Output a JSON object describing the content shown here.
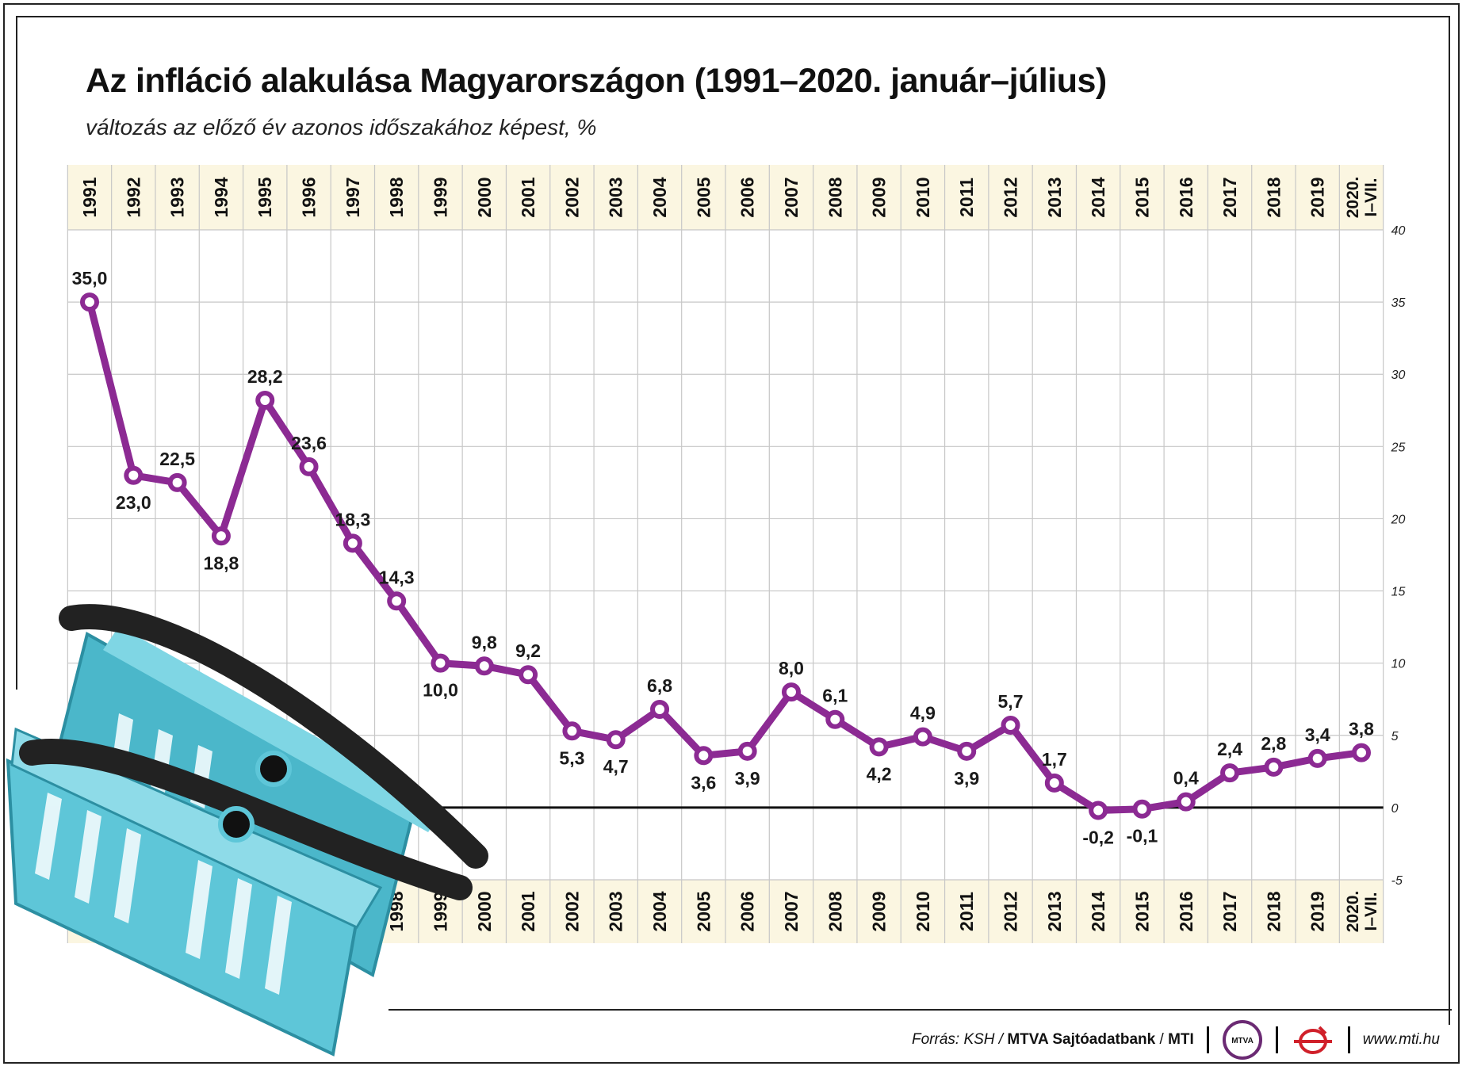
{
  "title": "Az infláció alakulása Magyarországon (1991–2020. január–július)",
  "subtitle": "változás az előző év azonos időszakához képest, %",
  "footer": {
    "source_label": "Forrás: KSH /",
    "agency": "MTVA Sajtóadatbank",
    "agency_sep": "/",
    "mti": "MTI",
    "mtva_logo_text": "MTVA",
    "website": "www.mti.hu"
  },
  "colors": {
    "line": "#8c2a93",
    "band": "#fbf6e1",
    "grid": "#c7c7c7",
    "zero_line": "#111111",
    "basket": "#5ec6d8",
    "handle": "#222222"
  },
  "chart_data": {
    "type": "line",
    "categories": [
      "1991",
      "1992",
      "1993",
      "1994",
      "1995",
      "1996",
      "1997",
      "1998",
      "1999",
      "2000",
      "2001",
      "2002",
      "2003",
      "2004",
      "2005",
      "2006",
      "2007",
      "2008",
      "2009",
      "2010",
      "2011",
      "2012",
      "2013",
      "2014",
      "2015",
      "2016",
      "2017",
      "2018",
      "2019",
      "2020. I–VII."
    ],
    "series": [
      {
        "name": "Infláció",
        "values": [
          35.0,
          23.0,
          22.5,
          18.8,
          28.2,
          23.6,
          18.3,
          14.3,
          10.0,
          9.8,
          9.2,
          5.3,
          4.7,
          6.8,
          3.6,
          3.9,
          8.0,
          6.1,
          4.2,
          4.9,
          3.9,
          5.7,
          1.7,
          -0.2,
          -0.1,
          0.4,
          2.4,
          2.8,
          3.4,
          3.8
        ],
        "labels": [
          "35,0",
          "23,0",
          "22,5",
          "18,8",
          "28,2",
          "23,6",
          "18,3",
          "14,3",
          "10,0",
          "9,8",
          "9,2",
          "5,3",
          "4,7",
          "6,8",
          "3,6",
          "3,9",
          "8,0",
          "6,1",
          "4,2",
          "4,9",
          "3,9",
          "5,7",
          "1,7",
          "-0,2",
          "-0,1",
          "0,4",
          "2,4",
          "2,8",
          "3,4",
          "3,8"
        ],
        "label_side": [
          "above",
          "below",
          "above",
          "below",
          "above",
          "above",
          "above",
          "above",
          "below",
          "above",
          "above",
          "below",
          "below",
          "above",
          "below",
          "below",
          "above",
          "above",
          "below",
          "above",
          "below",
          "above",
          "above",
          "below",
          "below",
          "above",
          "above",
          "above",
          "above",
          "above"
        ]
      }
    ],
    "yticks": [
      "40",
      "35",
      "30",
      "25",
      "20",
      "15",
      "10",
      "5",
      "0",
      "-5"
    ],
    "ylim": [
      -5,
      40
    ],
    "grid": true
  }
}
